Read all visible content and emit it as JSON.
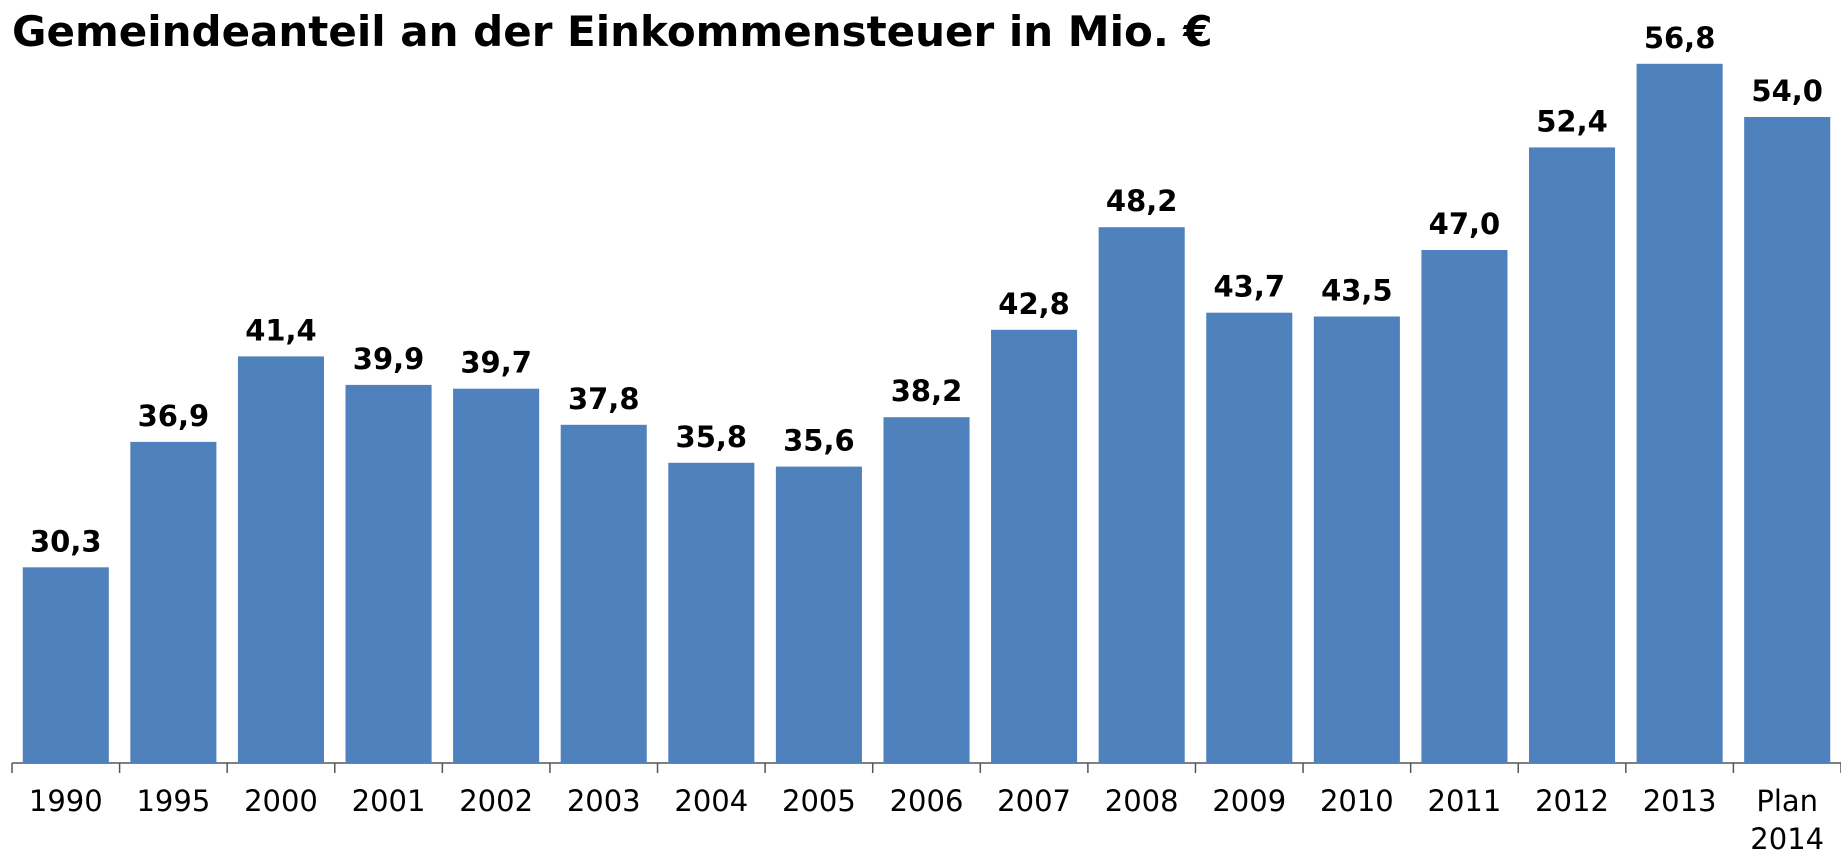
{
  "chart_data": {
    "type": "bar",
    "title": "Gemeindeanteil an der Einkommensteuer in Mio. €",
    "categories": [
      "1990",
      "1995",
      "2000",
      "2001",
      "2002",
      "2003",
      "2004",
      "2005",
      "2006",
      "2007",
      "2008",
      "2009",
      "2010",
      "2011",
      "2012",
      "2013",
      "Plan 2014"
    ],
    "values": [
      30.3,
      36.9,
      41.4,
      39.9,
      39.7,
      37.8,
      35.8,
      35.6,
      38.2,
      42.8,
      48.2,
      43.7,
      43.5,
      47.0,
      52.4,
      56.8,
      54.0
    ],
    "value_labels": [
      "30,3",
      "36,9",
      "41,4",
      "39,9",
      "39,7",
      "37,8",
      "35,8",
      "35,6",
      "38,2",
      "42,8",
      "48,2",
      "43,7",
      "43,5",
      "47,0",
      "52,4",
      "56,8",
      "54,0"
    ],
    "color": "#4f81bd",
    "ylim": [
      20,
      60
    ]
  }
}
